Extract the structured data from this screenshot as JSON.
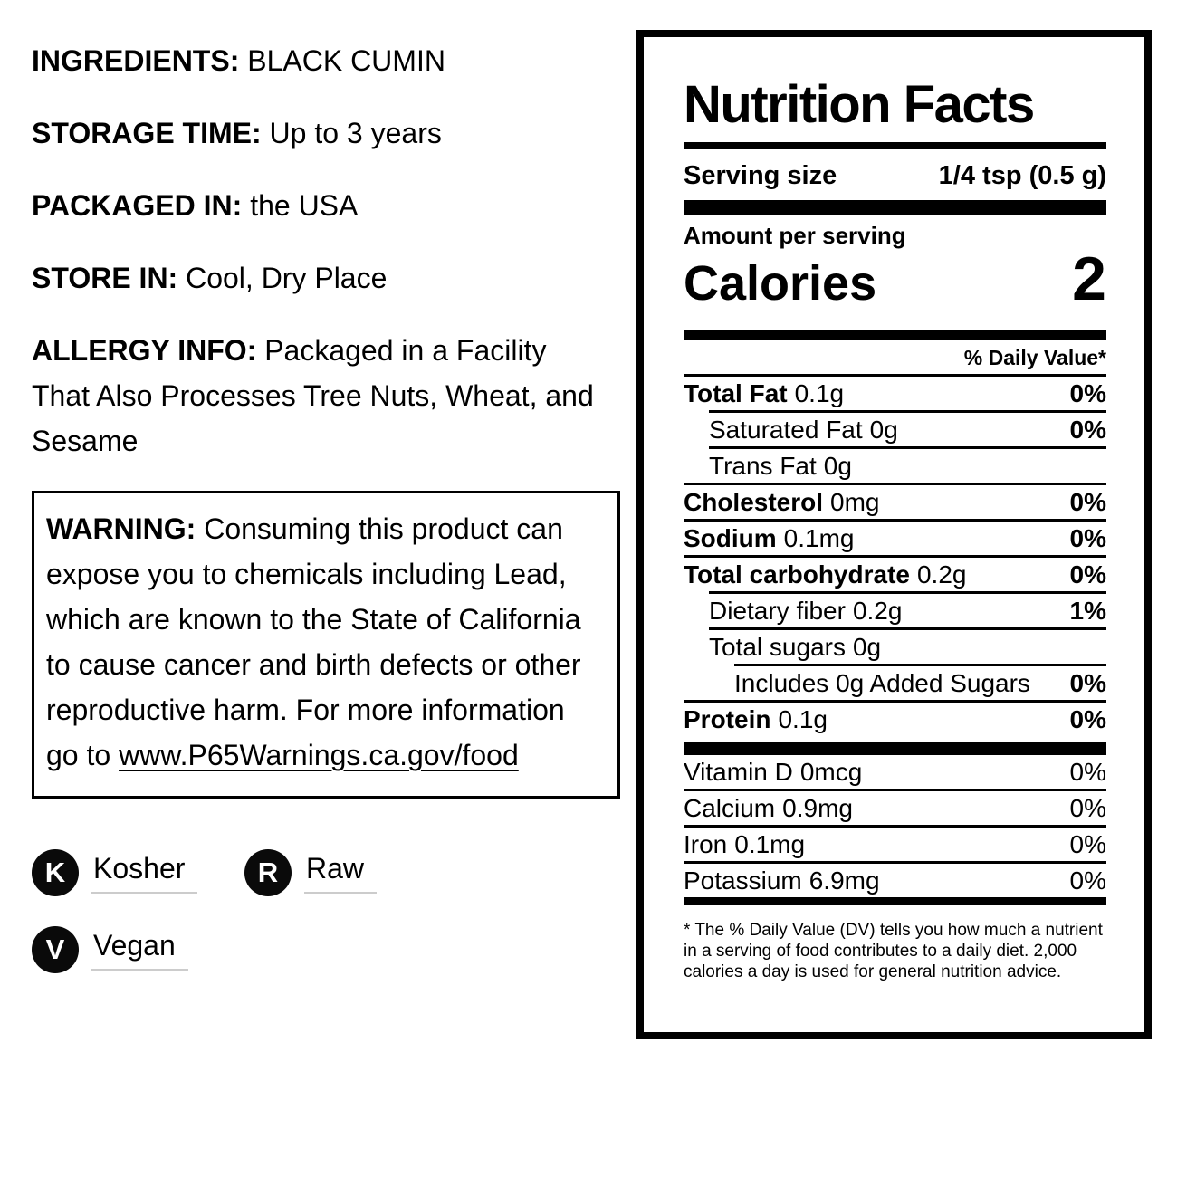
{
  "colors": {
    "ink": "#000000",
    "background": "#ffffff",
    "badge_underline": "#cccccc"
  },
  "product_info": {
    "sections": [
      {
        "label": "INGREDIENTS:",
        "value": "BLACK CUMIN"
      },
      {
        "label": "STORAGE TIME:",
        "value": "Up to 3 years"
      },
      {
        "label": "PACKAGED IN:",
        "value": "the USA"
      },
      {
        "label": "STORE IN:",
        "value": "Cool, Dry Place"
      },
      {
        "label": "ALLERGY INFO:",
        "value": "Packaged in a Facility That Also Processes Tree Nuts, Wheat, and Sesame"
      }
    ],
    "warning": {
      "label": "WARNING:",
      "text": "Consuming this product can expose you to chemicals including Lead, which are known to the State of California to cause cancer and birth defects or other reproductive harm. For more information go to ",
      "link_text": "www.P65Warnings.ca.gov/food"
    },
    "badges": [
      {
        "initial": "K",
        "label": "Kosher"
      },
      {
        "initial": "R",
        "label": "Raw"
      },
      {
        "initial": "V",
        "label": "Vegan"
      }
    ]
  },
  "nutrition_facts": {
    "title": "Nutrition Facts",
    "serving_size": {
      "label": "Serving size",
      "value": "1/4 tsp (0.5 g)"
    },
    "amount_per_serving_label": "Amount per serving",
    "calories": {
      "label": "Calories",
      "value": "2"
    },
    "daily_value_header": "% Daily Value*",
    "rows": [
      {
        "name": "Total Fat",
        "amount": "0.1g",
        "dv": "0%"
      },
      {
        "name": "Saturated Fat",
        "amount": "0g",
        "dv": "0%"
      },
      {
        "name": "Trans Fat",
        "amount": "0g",
        "dv": ""
      },
      {
        "name": "Cholesterol",
        "amount": "0mg",
        "dv": "0%"
      },
      {
        "name": "Sodium",
        "amount": "0.1mg",
        "dv": "0%"
      },
      {
        "name": "Total carbohydrate",
        "amount": "0.2g",
        "dv": "0%"
      },
      {
        "name": "Dietary fiber",
        "amount": "0.2g",
        "dv": "1%"
      },
      {
        "name": "Total sugars",
        "amount": "0g",
        "dv": ""
      },
      {
        "name": "Includes 0g Added Sugars",
        "amount": "",
        "dv": "0%"
      },
      {
        "name": "Protein",
        "amount": "0.1g",
        "dv": "0%"
      }
    ],
    "micronutrients": [
      {
        "name": "Vitamin D",
        "amount": "0mcg",
        "dv": "0%"
      },
      {
        "name": "Calcium",
        "amount": "0.9mg",
        "dv": "0%"
      },
      {
        "name": "Iron",
        "amount": "0.1mg",
        "dv": "0%"
      },
      {
        "name": "Potassium",
        "amount": "6.9mg",
        "dv": "0%"
      }
    ],
    "footnote": "* The % Daily Value (DV) tells you how much a nutrient in a serving of food contributes to a daily diet. 2,000 calories a day is used for general nutrition advice."
  }
}
